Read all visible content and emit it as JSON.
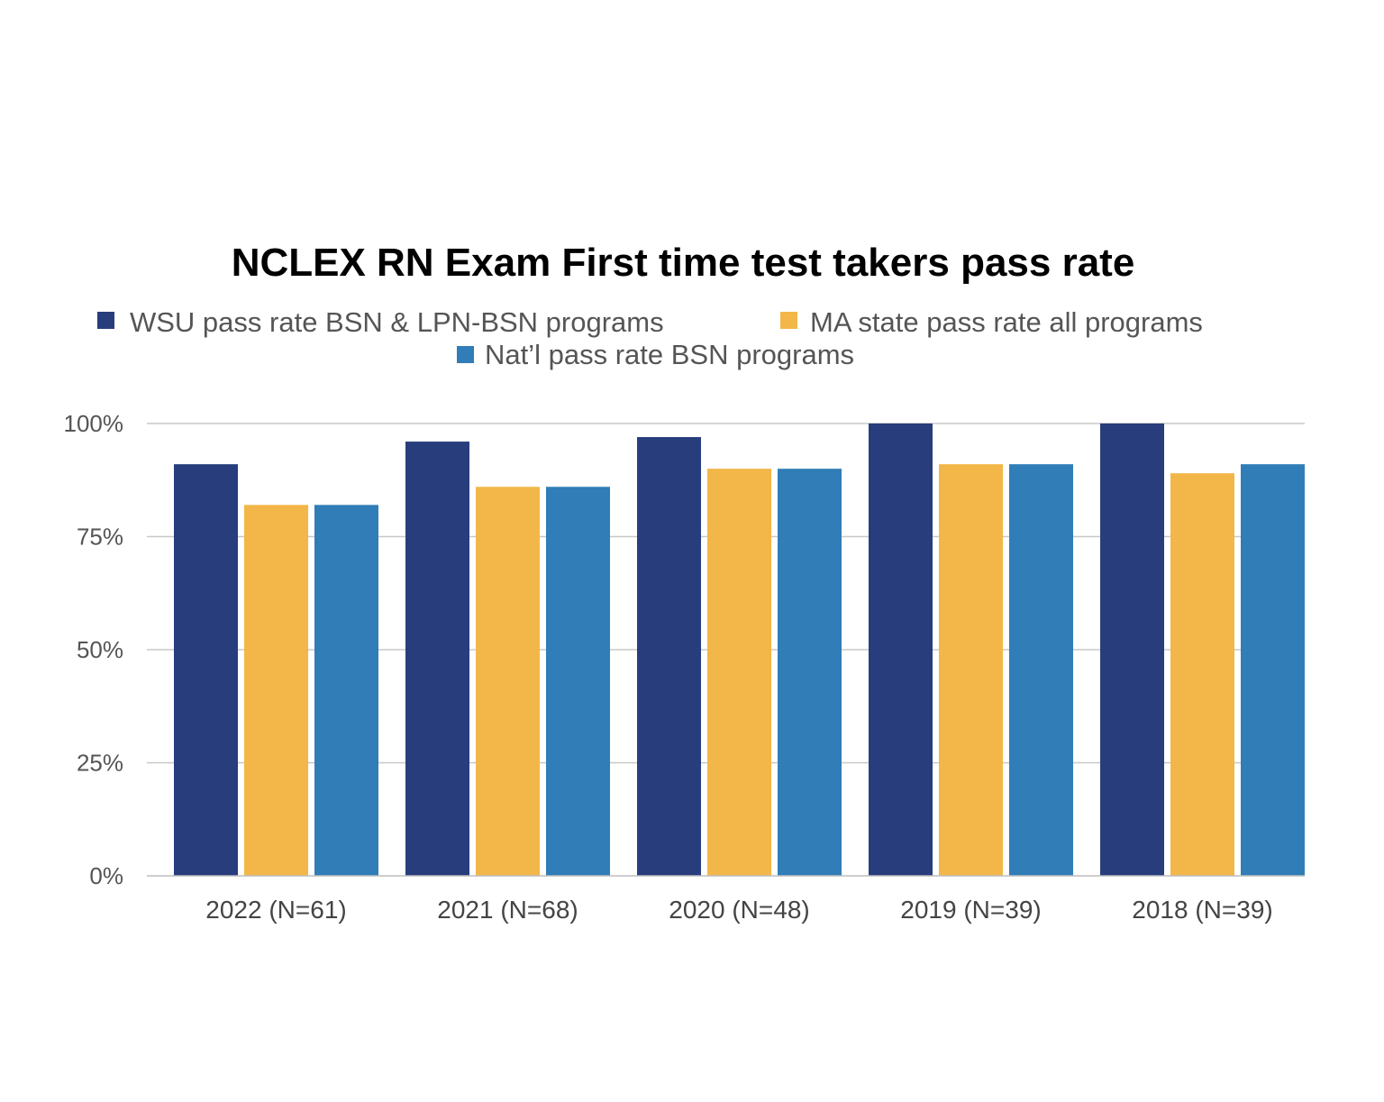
{
  "chart_data": {
    "type": "bar",
    "title": "NCLEX RN Exam First time test takers pass rate",
    "xlabel": "",
    "ylabel": "",
    "ylim": [
      0,
      100
    ],
    "yticks": [
      0,
      25,
      50,
      75,
      100
    ],
    "ytick_labels": [
      "0%",
      "25%",
      "50%",
      "75%",
      "100%"
    ],
    "grid": true,
    "legend_position": "top-center",
    "categories": [
      "2022 (N=61)",
      "2021 (N=68)",
      "2020 (N=48)",
      "2019 (N=39)",
      "2018 (N=39)"
    ],
    "series": [
      {
        "name": "WSU pass rate BSN & LPN-BSN programs",
        "color": "#283d7c",
        "values": [
          91,
          96,
          97,
          100,
          100
        ]
      },
      {
        "name": "MA state pass rate all programs",
        "color": "#f2b748",
        "values": [
          82,
          86,
          90,
          91,
          89
        ]
      },
      {
        "name": "Nat’l pass rate BSN programs",
        "color": "#307db7",
        "values": [
          82,
          86,
          90,
          91,
          91
        ]
      }
    ]
  }
}
